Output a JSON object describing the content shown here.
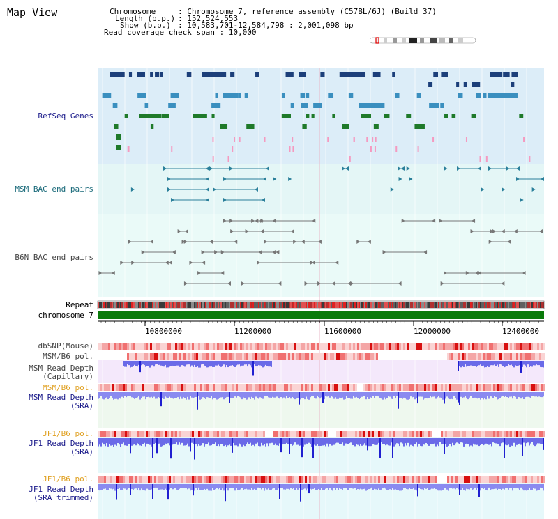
{
  "page": {
    "title": "Map View"
  },
  "header": {
    "chromosome_key": "Chromosome",
    "chromosome_val": ": Chromosome 7, reference assembly (C57BL/6J) (Build 37)",
    "length_key": "Length (b.p.)",
    "length_val": ": 152,524,553",
    "show_key": "Show (b.p.)",
    "show_val": ": 10,583,701-12,584,798 : 2,001,098 bp",
    "coverage_line": "Read coverage check span : 10,000"
  },
  "tracks": {
    "refseq": "RefSeq Genes",
    "msm_bac": "MSM BAC end pairs",
    "b6n_bac": "B6N BAC end pairs",
    "repeat": "Repeat",
    "chromosome": "chromosome 7",
    "dbsnp": "dbSNP(Mouse)",
    "msm_pol": "MSM/B6 pol.",
    "msm_depth_cap_1": "MSM Read Depth",
    "msm_depth_cap_2": "(Capillary)",
    "msm_pol_2": "MSM/B6 pol.",
    "msm_depth_sra_1": "MSM Read Depth",
    "msm_depth_sra_2": "(SRA)",
    "jf1_pol": "JF1/B6 pol.",
    "jf1_depth_1": "JF1 Read Depth",
    "jf1_depth_2": "(SRA)",
    "jf1_pol_2": "JF1/B6 pol.",
    "jf1_trim_1": "JF1 Read Depth",
    "jf1_trim_2": "(SRA trimmed)"
  },
  "axis": {
    "ticks": [
      "10800000",
      "11200000",
      "11600000",
      "12000000",
      "12400000"
    ]
  },
  "colors": {
    "refseq_bg": "#dcedf8",
    "msm_bac_bg": "#e4f6f6",
    "b6n_bac_bg": "#eafaf8",
    "gene_dark": "#1c3f7a",
    "gene_mid": "#3a8fbf",
    "gene_green": "#1f7a2a",
    "gene_pink": "#f59ac0",
    "bac_teal": "#2a7f9a",
    "bac_grey": "#777777",
    "chromosome_bar": "#0a7a0a",
    "depth_blue": "#3a3ae0",
    "pol_red": "#e83a3a",
    "label_navy": "#1a1a8a",
    "label_teal": "#1a6a7a",
    "label_orange": "#e0a020",
    "label_grey": "#444444"
  }
}
